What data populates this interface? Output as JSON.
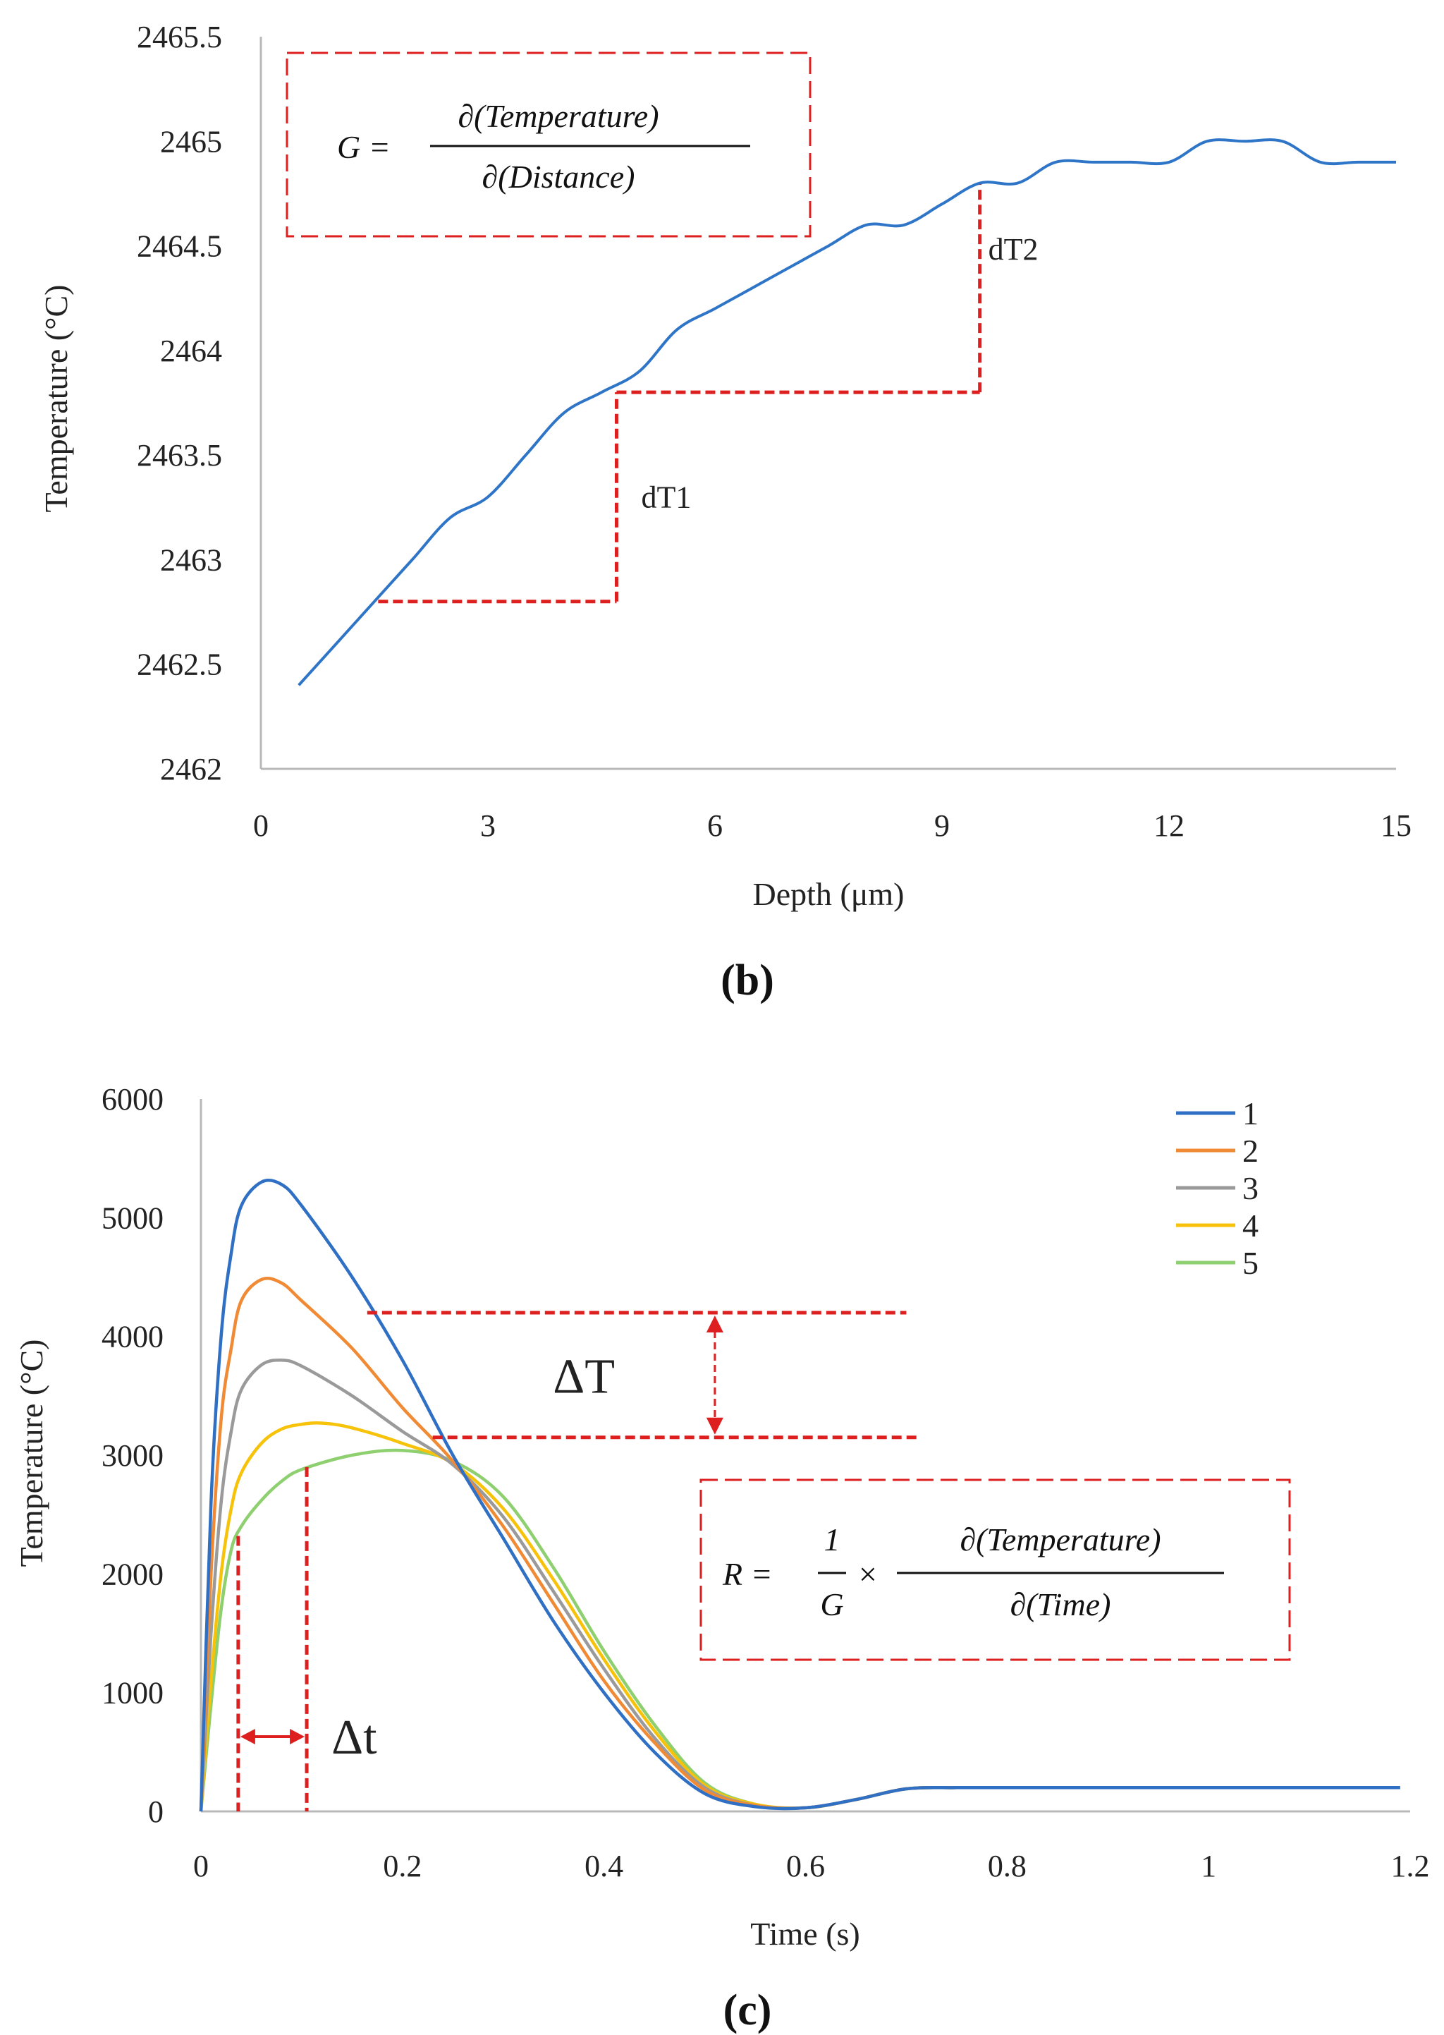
{
  "colors": {
    "series_b": "#2e75c8",
    "annotation_red": "#dd1f1f",
    "axis": "#b8b8b8",
    "c_series": [
      "#2f6fc4",
      "#f08a35",
      "#9a9a9a",
      "#f7c20a",
      "#8ecf6f"
    ]
  },
  "chart_data": [
    {
      "panel": "(b)",
      "type": "line",
      "xlabel": "Depth (μm)",
      "ylabel": "Temperature (°C)",
      "xlim": [
        0,
        15
      ],
      "ylim": [
        2462,
        2465.5
      ],
      "x_ticks": [
        "0",
        "3",
        "6",
        "9",
        "12",
        "15"
      ],
      "y_ticks": [
        "2462",
        "2462.5",
        "2463",
        "2463.5",
        "2464",
        "2464.5",
        "2465",
        "2465.5"
      ],
      "series": [
        {
          "name": "Temperature",
          "x": [
            0.5,
            1.5,
            2.0,
            2.5,
            3.0,
            3.5,
            4.0,
            4.5,
            5.0,
            5.5,
            6.0,
            6.5,
            7.0,
            7.5,
            8.0,
            8.5,
            9.0,
            9.5,
            10.0,
            10.5,
            11.0,
            11.5,
            12.0,
            12.5,
            13.0,
            13.5,
            14.0,
            14.5,
            15.0
          ],
          "y": [
            2462.4,
            2462.8,
            2463.0,
            2463.2,
            2463.3,
            2463.5,
            2463.7,
            2463.8,
            2463.9,
            2464.1,
            2464.2,
            2464.3,
            2464.4,
            2464.5,
            2464.6,
            2464.6,
            2464.7,
            2464.8,
            2464.8,
            2464.9,
            2464.9,
            2464.9,
            2464.9,
            2465.0,
            2465.0,
            2465.0,
            2464.9,
            2464.9,
            2464.9
          ]
        }
      ],
      "annotations": {
        "dT1_label": "dT1",
        "dT2_label": "dT2",
        "step1": {
          "x0": 1.55,
          "x1": 4.7,
          "y0": 2462.8,
          "y1": 2463.8
        },
        "step2": {
          "x0": 4.7,
          "x1": 9.5,
          "y0": 2463.8,
          "y1": 2464.8
        },
        "formula_lhs": "G =",
        "formula_num": "∂(Temperature)",
        "formula_den": "∂(Distance)"
      }
    },
    {
      "panel": "(c)",
      "type": "line",
      "xlabel": "Time (s)",
      "ylabel": "Temperature (°C)",
      "xlim": [
        0,
        1.2
      ],
      "ylim": [
        0,
        6000
      ],
      "x_ticks": [
        "0",
        "0.2",
        "0.4",
        "0.6",
        "0.8",
        "1",
        "1.2"
      ],
      "y_ticks": [
        "0",
        "1000",
        "2000",
        "3000",
        "4000",
        "5000",
        "6000"
      ],
      "legend": [
        "1",
        "2",
        "3",
        "4",
        "5"
      ],
      "series": [
        {
          "name": "1",
          "x": [
            0,
            0.01,
            0.02,
            0.03,
            0.04,
            0.06,
            0.08,
            0.1,
            0.15,
            0.2,
            0.25,
            0.3,
            0.35,
            0.4,
            0.45,
            0.5,
            0.55,
            0.6,
            0.65,
            0.7,
            0.75,
            0.8,
            1.0,
            1.19
          ],
          "y": [
            0,
            2600,
            4000,
            4700,
            5100,
            5300,
            5280,
            5100,
            4500,
            3800,
            3000,
            2300,
            1600,
            1000,
            500,
            150,
            40,
            30,
            100,
            190,
            200,
            200,
            200,
            200
          ]
        },
        {
          "name": "2",
          "x": [
            0,
            0.01,
            0.02,
            0.03,
            0.04,
            0.06,
            0.08,
            0.1,
            0.15,
            0.2,
            0.25,
            0.3,
            0.35,
            0.4,
            0.45,
            0.5,
            0.55,
            0.6,
            0.65,
            0.7,
            0.75,
            0.8,
            1.0,
            1.19
          ],
          "y": [
            0,
            2000,
            3300,
            3900,
            4300,
            4480,
            4450,
            4300,
            3900,
            3400,
            2950,
            2400,
            1750,
            1100,
            580,
            180,
            50,
            30,
            100,
            190,
            200,
            200,
            200,
            200
          ]
        },
        {
          "name": "3",
          "x": [
            0,
            0.01,
            0.02,
            0.03,
            0.04,
            0.06,
            0.08,
            0.1,
            0.15,
            0.2,
            0.25,
            0.3,
            0.35,
            0.4,
            0.45,
            0.5,
            0.55,
            0.6,
            0.65,
            0.7,
            0.75,
            0.8,
            1.0,
            1.19
          ],
          "y": [
            0,
            1500,
            2600,
            3200,
            3550,
            3760,
            3800,
            3750,
            3500,
            3200,
            2920,
            2480,
            1850,
            1200,
            620,
            200,
            50,
            30,
            100,
            190,
            200,
            200,
            200,
            200
          ]
        },
        {
          "name": "4",
          "x": [
            0,
            0.01,
            0.02,
            0.03,
            0.04,
            0.06,
            0.08,
            0.1,
            0.12,
            0.15,
            0.2,
            0.25,
            0.3,
            0.35,
            0.4,
            0.45,
            0.5,
            0.55,
            0.6,
            0.65,
            0.7,
            0.75,
            0.8,
            1.0,
            1.19
          ],
          "y": [
            0,
            1100,
            2000,
            2550,
            2850,
            3100,
            3220,
            3260,
            3270,
            3230,
            3100,
            2930,
            2550,
            1950,
            1280,
            680,
            220,
            60,
            30,
            100,
            190,
            200,
            200,
            200,
            200
          ]
        },
        {
          "name": "5",
          "x": [
            0,
            0.01,
            0.02,
            0.03,
            0.04,
            0.06,
            0.08,
            0.1,
            0.15,
            0.2,
            0.25,
            0.3,
            0.35,
            0.4,
            0.45,
            0.5,
            0.55,
            0.6,
            0.65,
            0.7,
            0.75,
            0.8,
            1.0,
            1.19
          ],
          "y": [
            0,
            900,
            1700,
            2200,
            2400,
            2620,
            2780,
            2880,
            3000,
            3040,
            2950,
            2650,
            2050,
            1350,
            730,
            240,
            60,
            30,
            100,
            190,
            200,
            200,
            200,
            200
          ]
        }
      ],
      "annotations": {
        "deltaT_label": "ΔT",
        "deltat_label": "Δt",
        "deltaT_top": 4200,
        "deltaT_bottom": 3150,
        "deltat_x0": 0.037,
        "deltat_x1": 0.105,
        "deltat_y0": 2320,
        "deltat_y1": 2900,
        "formula_lhs": "R =",
        "formula_frac_num": "1",
        "formula_frac_den": "G",
        "formula_times": "×",
        "formula_num": "∂(Temperature)",
        "formula_den": "∂(Time)"
      }
    }
  ]
}
